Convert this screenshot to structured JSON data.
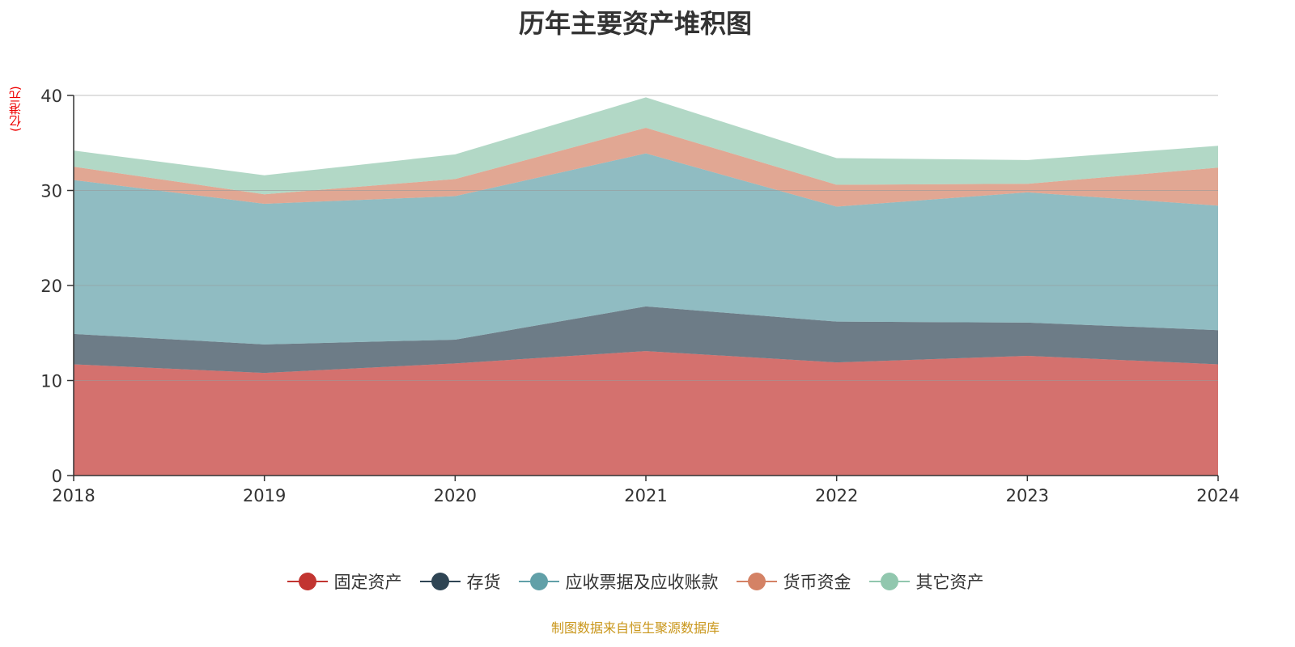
{
  "chart_data": {
    "type": "area",
    "stacked": true,
    "title": "历年主要资产堆积图",
    "ylabel": "(亿港元)",
    "xlabel": "",
    "ylim": [
      0,
      40
    ],
    "yticks": [
      "0",
      "10",
      "20",
      "30",
      "40"
    ],
    "categories": [
      "2018",
      "2019",
      "2020",
      "2021",
      "2022",
      "2023",
      "2024"
    ],
    "grid": true,
    "legend_position": "bottom",
    "series": [
      {
        "name": "固定资产",
        "color": "#c23531",
        "values": [
          11.7,
          10.8,
          11.8,
          13.1,
          11.9,
          12.6,
          11.7
        ]
      },
      {
        "name": "存货",
        "color": "#2f4554",
        "values": [
          3.2,
          3.0,
          2.5,
          4.7,
          4.3,
          3.5,
          3.6
        ]
      },
      {
        "name": "应收票据及应收账款",
        "color": "#61a0a8",
        "values": [
          16.2,
          14.8,
          15.1,
          16.1,
          12.1,
          13.7,
          13.1
        ]
      },
      {
        "name": "货币资金",
        "color": "#d48265",
        "values": [
          1.4,
          1.0,
          1.8,
          2.7,
          2.3,
          0.9,
          4.0
        ]
      },
      {
        "name": "其它资产",
        "color": "#91c7ae",
        "values": [
          1.7,
          2.0,
          2.6,
          3.2,
          2.8,
          2.5,
          2.3
        ]
      }
    ]
  },
  "source": "制图数据来自恒生聚源数据库"
}
